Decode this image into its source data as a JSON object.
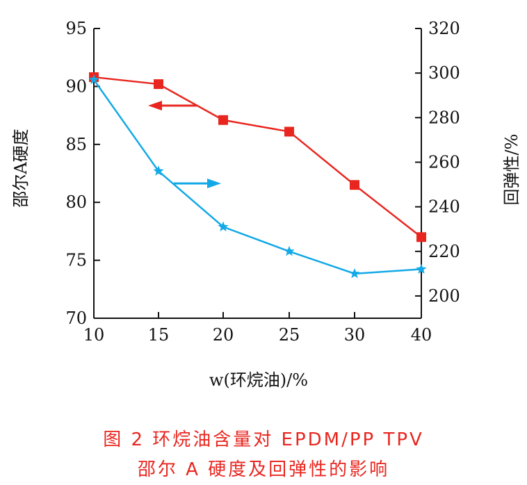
{
  "chart_data": {
    "type": "line",
    "x": [
      10,
      15,
      20,
      25,
      30,
      40
    ],
    "xlabel": "w(环烷油)/%",
    "xlim": [
      10,
      40
    ],
    "xticks": [
      10,
      15,
      20,
      25,
      30,
      40
    ],
    "left_axis": {
      "label": "邵尔A硬度",
      "ylim": [
        70,
        95
      ],
      "ticks": [
        70,
        75,
        80,
        85,
        90,
        95
      ]
    },
    "right_axis": {
      "label": "回弹性/%",
      "ylim": [
        190,
        320
      ],
      "ticks": [
        200,
        220,
        240,
        260,
        280,
        300,
        320
      ]
    },
    "series": [
      {
        "axis": "left",
        "color": "#e8261f",
        "marker": "square",
        "values": [
          90.8,
          90.2,
          87.1,
          86.1,
          81.5,
          77.0
        ]
      },
      {
        "axis": "right",
        "color": "#12a9e6",
        "marker": "star",
        "values": [
          297,
          256,
          231,
          220,
          210,
          212
        ]
      }
    ],
    "annotations": [
      {
        "type": "arrow",
        "direction": "left",
        "series": 0
      },
      {
        "type": "arrow",
        "direction": "right",
        "series": 1
      }
    ],
    "grid": false
  },
  "caption": {
    "line1": "图 2   环烷油含量对 EPDM/PP TPV",
    "line2": "邵尔 A 硬度及回弹性的影响"
  }
}
